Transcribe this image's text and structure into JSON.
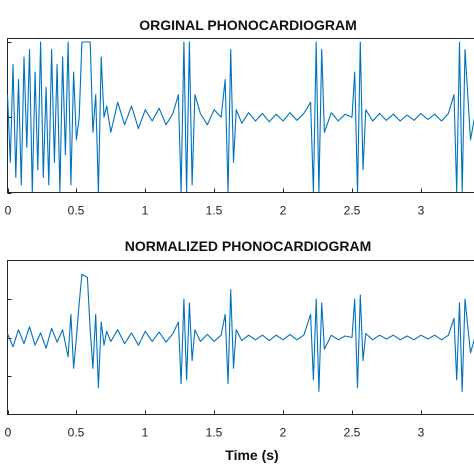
{
  "chart_data": [
    {
      "type": "line",
      "title": "ORGINAL PHONOCARDIOGRAM",
      "xlabel": "",
      "ylabel": "",
      "x_ticks": [
        "0",
        "0.5",
        "1",
        "1.5",
        "2",
        "2.5",
        "3"
      ],
      "x_tick_values": [
        0,
        0.5,
        1,
        1.5,
        2,
        2.5,
        3
      ],
      "xlim": [
        0,
        3.4
      ],
      "ylim": [
        -1,
        1
      ],
      "y_ticks": [
        -1,
        0,
        1
      ],
      "y_tick_labels": [
        "",
        "",
        ""
      ],
      "grid": false,
      "series": [
        {
          "color": "#0072BD",
          "x": [
            0,
            0.02,
            0.04,
            0.06,
            0.08,
            0.1,
            0.12,
            0.14,
            0.16,
            0.18,
            0.2,
            0.22,
            0.24,
            0.26,
            0.28,
            0.3,
            0.32,
            0.34,
            0.36,
            0.38,
            0.4,
            0.42,
            0.44,
            0.46,
            0.48,
            0.5,
            0.52,
            0.54,
            0.56,
            0.58,
            0.6,
            0.62,
            0.64,
            0.66,
            0.68,
            0.7,
            0.72,
            0.75,
            0.8,
            0.85,
            0.9,
            0.95,
            1.0,
            1.05,
            1.1,
            1.15,
            1.2,
            1.24,
            1.26,
            1.28,
            1.3,
            1.32,
            1.34,
            1.36,
            1.4,
            1.45,
            1.5,
            1.55,
            1.58,
            1.6,
            1.62,
            1.64,
            1.66,
            1.7,
            1.75,
            1.8,
            1.85,
            1.9,
            1.95,
            2.0,
            2.05,
            2.1,
            2.15,
            2.2,
            2.22,
            2.24,
            2.26,
            2.28,
            2.3,
            2.35,
            2.4,
            2.45,
            2.5,
            2.52,
            2.54,
            2.56,
            2.58,
            2.6,
            2.65,
            2.7,
            2.75,
            2.8,
            2.85,
            2.9,
            2.95,
            3.0,
            3.05,
            3.1,
            3.15,
            3.2,
            3.24,
            3.26,
            3.28,
            3.3,
            3.32,
            3.36,
            3.4
          ],
          "y": [
            0.3,
            -0.6,
            0.7,
            -0.8,
            0.5,
            -0.9,
            0.8,
            -0.4,
            0.9,
            -1.0,
            0.6,
            -0.7,
            1.0,
            -0.8,
            0.4,
            -0.9,
            0.9,
            -0.6,
            0.7,
            -1.0,
            0.8,
            -0.5,
            1.0,
            -0.9,
            0.6,
            -0.3,
            0.0,
            1.0,
            1.0,
            1.0,
            1.0,
            -0.2,
            0.3,
            -1.0,
            0.8,
            0.0,
            0.15,
            -0.2,
            0.2,
            -0.1,
            0.15,
            -0.15,
            0.1,
            -0.05,
            0.12,
            -0.1,
            0.05,
            0.3,
            -1.0,
            1.0,
            -1.0,
            1.0,
            -0.9,
            0.3,
            0.05,
            -0.1,
            0.1,
            0.0,
            0.5,
            -1.0,
            0.9,
            -0.6,
            0.1,
            -0.08,
            0.06,
            -0.05,
            0.05,
            -0.06,
            0.04,
            -0.05,
            0.06,
            -0.04,
            0.05,
            0.2,
            -1.0,
            1.0,
            -1.0,
            0.9,
            -0.2,
            0.06,
            -0.05,
            0.04,
            0.0,
            0.6,
            -1.0,
            1.0,
            -0.7,
            0.1,
            -0.05,
            0.05,
            -0.04,
            0.04,
            -0.05,
            0.03,
            -0.04,
            0.05,
            -0.03,
            0.04,
            -0.05,
            0.05,
            0.3,
            -1.0,
            1.0,
            -1.0,
            0.9,
            -0.3,
            0.1
          ]
        }
      ]
    },
    {
      "type": "line",
      "title": "NORMALIZED PHONOCARDIOGRAM",
      "xlabel": "Time (s)",
      "ylabel": "",
      "x_ticks": [
        "0",
        "0.5",
        "1",
        "1.5",
        "2",
        "2.5",
        "3"
      ],
      "x_tick_values": [
        0,
        0.5,
        1,
        1.5,
        2,
        2.5,
        3
      ],
      "xlim": [
        0,
        3.4
      ],
      "ylim": [
        -1,
        1
      ],
      "y_ticks": [
        -0.5,
        0,
        0.5
      ],
      "y_tick_labels": [
        "",
        "",
        ""
      ],
      "grid": false,
      "series": [
        {
          "color": "#0072BD",
          "x": [
            0,
            0.04,
            0.08,
            0.12,
            0.16,
            0.2,
            0.24,
            0.28,
            0.32,
            0.36,
            0.4,
            0.44,
            0.46,
            0.48,
            0.5,
            0.52,
            0.54,
            0.56,
            0.58,
            0.6,
            0.62,
            0.64,
            0.66,
            0.68,
            0.7,
            0.72,
            0.75,
            0.8,
            0.85,
            0.9,
            0.95,
            1.0,
            1.05,
            1.1,
            1.15,
            1.2,
            1.24,
            1.26,
            1.28,
            1.3,
            1.32,
            1.34,
            1.36,
            1.4,
            1.45,
            1.5,
            1.55,
            1.58,
            1.6,
            1.62,
            1.64,
            1.66,
            1.7,
            1.75,
            1.8,
            1.85,
            1.9,
            1.95,
            2.0,
            2.05,
            2.1,
            2.15,
            2.2,
            2.22,
            2.24,
            2.26,
            2.28,
            2.3,
            2.35,
            2.4,
            2.45,
            2.5,
            2.52,
            2.54,
            2.56,
            2.58,
            2.6,
            2.65,
            2.7,
            2.75,
            2.8,
            2.85,
            2.9,
            2.95,
            3.0,
            3.05,
            3.1,
            3.15,
            3.2,
            3.24,
            3.26,
            3.28,
            3.3,
            3.32,
            3.36,
            3.4
          ],
          "y": [
            0.05,
            -0.12,
            0.1,
            -0.08,
            0.14,
            -0.1,
            0.06,
            -0.14,
            0.12,
            -0.06,
            0.1,
            -0.25,
            0.3,
            -0.4,
            0.0,
            0.45,
            0.82,
            0.8,
            0.78,
            0.1,
            -0.4,
            0.3,
            -0.65,
            0.2,
            -0.1,
            0.08,
            -0.05,
            0.1,
            -0.08,
            0.06,
            -0.1,
            0.08,
            -0.05,
            0.07,
            -0.06,
            0.05,
            0.2,
            -0.6,
            0.5,
            -0.55,
            0.45,
            -0.3,
            0.1,
            -0.05,
            0.04,
            -0.05,
            0.03,
            0.3,
            -0.6,
            0.62,
            -0.4,
            0.1,
            -0.04,
            0.03,
            -0.03,
            0.03,
            -0.04,
            0.03,
            -0.03,
            0.04,
            -0.03,
            0.03,
            0.3,
            -0.55,
            0.5,
            -0.7,
            0.45,
            -0.15,
            0.03,
            -0.03,
            0.02,
            0.0,
            0.5,
            -0.65,
            0.55,
            -0.3,
            0.05,
            -0.03,
            0.03,
            -0.02,
            0.03,
            -0.03,
            0.02,
            -0.03,
            0.03,
            -0.02,
            0.03,
            -0.03,
            0.03,
            0.25,
            -0.55,
            0.45,
            -0.7,
            0.5,
            -0.2,
            0.05
          ]
        }
      ]
    }
  ]
}
